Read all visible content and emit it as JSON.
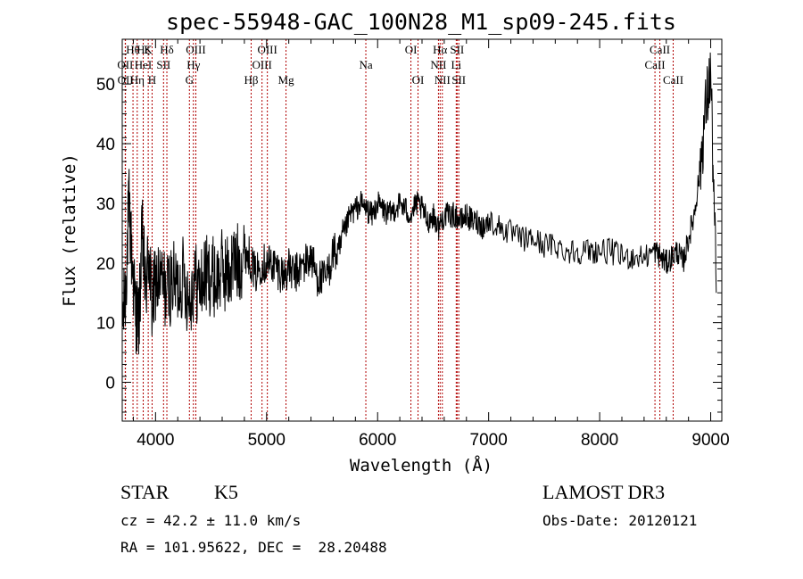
{
  "chart_data": {
    "type": "line",
    "title": "spec-55948-GAC_100N28_M1_sp09-245.fits",
    "xlabel": "Wavelength (Å)",
    "ylabel": "Flux (relative)",
    "xlim": [
      3700,
      9100
    ],
    "ylim": [
      -6.5,
      57.5
    ],
    "xticks": [
      4000,
      5000,
      6000,
      7000,
      8000,
      9000
    ],
    "xtick_labels": [
      "4000",
      "5000",
      "6000",
      "7000",
      "8000",
      "9000"
    ],
    "yticks": [
      0,
      10,
      20,
      30,
      40,
      50
    ],
    "ytick_labels": [
      "0",
      "10",
      "20",
      "30",
      "40",
      "50"
    ],
    "series": [
      {
        "name": "flux",
        "color": "#000000",
        "x": [
          3700,
          3730,
          3760,
          3790,
          3820,
          3850,
          3880,
          3910,
          3940,
          3970,
          4000,
          4050,
          4100,
          4150,
          4200,
          4250,
          4300,
          4350,
          4400,
          4450,
          4500,
          4550,
          4600,
          4650,
          4700,
          4750,
          4800,
          4850,
          4900,
          4950,
          5000,
          5050,
          5100,
          5150,
          5200,
          5250,
          5300,
          5350,
          5400,
          5450,
          5500,
          5550,
          5600,
          5650,
          5700,
          5750,
          5800,
          5850,
          5900,
          5950,
          6000,
          6050,
          6100,
          6150,
          6200,
          6250,
          6300,
          6350,
          6400,
          6450,
          6500,
          6550,
          6600,
          6650,
          6700,
          6750,
          6800,
          6850,
          6900,
          6950,
          7000,
          7100,
          7200,
          7300,
          7400,
          7500,
          7600,
          7700,
          7800,
          7900,
          8000,
          8100,
          8200,
          8300,
          8400,
          8500,
          8550,
          8600,
          8650,
          8700,
          8750,
          8800,
          8850,
          8900,
          8950,
          9000,
          9050
        ],
        "y": [
          10,
          15,
          30,
          20,
          12,
          10,
          25,
          15,
          22,
          12,
          17,
          17,
          15,
          17,
          16,
          18,
          14,
          17,
          16,
          18,
          18,
          17,
          19,
          18,
          20,
          20,
          22,
          21,
          18,
          20,
          20,
          20,
          19,
          18,
          19,
          18,
          19,
          20,
          21,
          18,
          17,
          18,
          22,
          21,
          25,
          28,
          29,
          30,
          29,
          28,
          30,
          29,
          28,
          29,
          30,
          29,
          28,
          30,
          29,
          27,
          28,
          26,
          28,
          28,
          28,
          27,
          28,
          27,
          27,
          26,
          27,
          26,
          25,
          24,
          24,
          23,
          23,
          22,
          22,
          22,
          22,
          22,
          21,
          21,
          21,
          22,
          21,
          20,
          21,
          22,
          20,
          24,
          28,
          35,
          45,
          52,
          15
        ]
      }
    ],
    "annotations": [
      {
        "label": "Hθ",
        "x": 3797,
        "row": 0
      },
      {
        "label": "OII",
        "x": 3727,
        "row": 1
      },
      {
        "label": "OII",
        "x": 3729,
        "row": 2
      },
      {
        "label": "Hζ",
        "x": 3889,
        "row": 0
      },
      {
        "label": "K",
        "x": 3934,
        "row": 0
      },
      {
        "label": "HeI",
        "x": 3889,
        "row": 1
      },
      {
        "label": "Hη",
        "x": 3835,
        "row": 2
      },
      {
        "label": "H",
        "x": 3969,
        "row": 2
      },
      {
        "label": "Hδ",
        "x": 4102,
        "row": 0
      },
      {
        "label": "SII",
        "x": 4072,
        "row": 1
      },
      {
        "label": "OIII",
        "x": 4363,
        "row": 0
      },
      {
        "label": "Hγ",
        "x": 4341,
        "row": 1
      },
      {
        "label": "G",
        "x": 4305,
        "row": 2
      },
      {
        "label": "Hβ",
        "x": 4861,
        "row": 2
      },
      {
        "label": "OIII",
        "x": 5007,
        "row": 0
      },
      {
        "label": "OIII",
        "x": 4959,
        "row": 1
      },
      {
        "label": "Mg",
        "x": 5175,
        "row": 2
      },
      {
        "label": "Na",
        "x": 5894,
        "row": 1
      },
      {
        "label": "OI",
        "x": 6300,
        "row": 0
      },
      {
        "label": "OI",
        "x": 6364,
        "row": 2
      },
      {
        "label": "Hα",
        "x": 6563,
        "row": 0
      },
      {
        "label": "NII",
        "x": 6548,
        "row": 1
      },
      {
        "label": "NII",
        "x": 6583,
        "row": 2
      },
      {
        "label": "SII",
        "x": 6716,
        "row": 0
      },
      {
        "label": "Li",
        "x": 6708,
        "row": 1
      },
      {
        "label": "SII",
        "x": 6731,
        "row": 2
      },
      {
        "label": "CaII",
        "x": 8542,
        "row": 0
      },
      {
        "label": "CaII",
        "x": 8498,
        "row": 1
      },
      {
        "label": "CaII",
        "x": 8662,
        "row": 2
      }
    ]
  },
  "footer": {
    "class_label": "STAR",
    "subclass": "K5",
    "survey": "LAMOST DR3",
    "cz": "cz = 42.2 ± 11.0 km/s",
    "obs_date": "Obs-Date: 20120121",
    "coords": "RA = 101.95622, DEC =  28.20488"
  },
  "colors": {
    "line_marker": "#b00000",
    "spectrum": "#000000"
  }
}
